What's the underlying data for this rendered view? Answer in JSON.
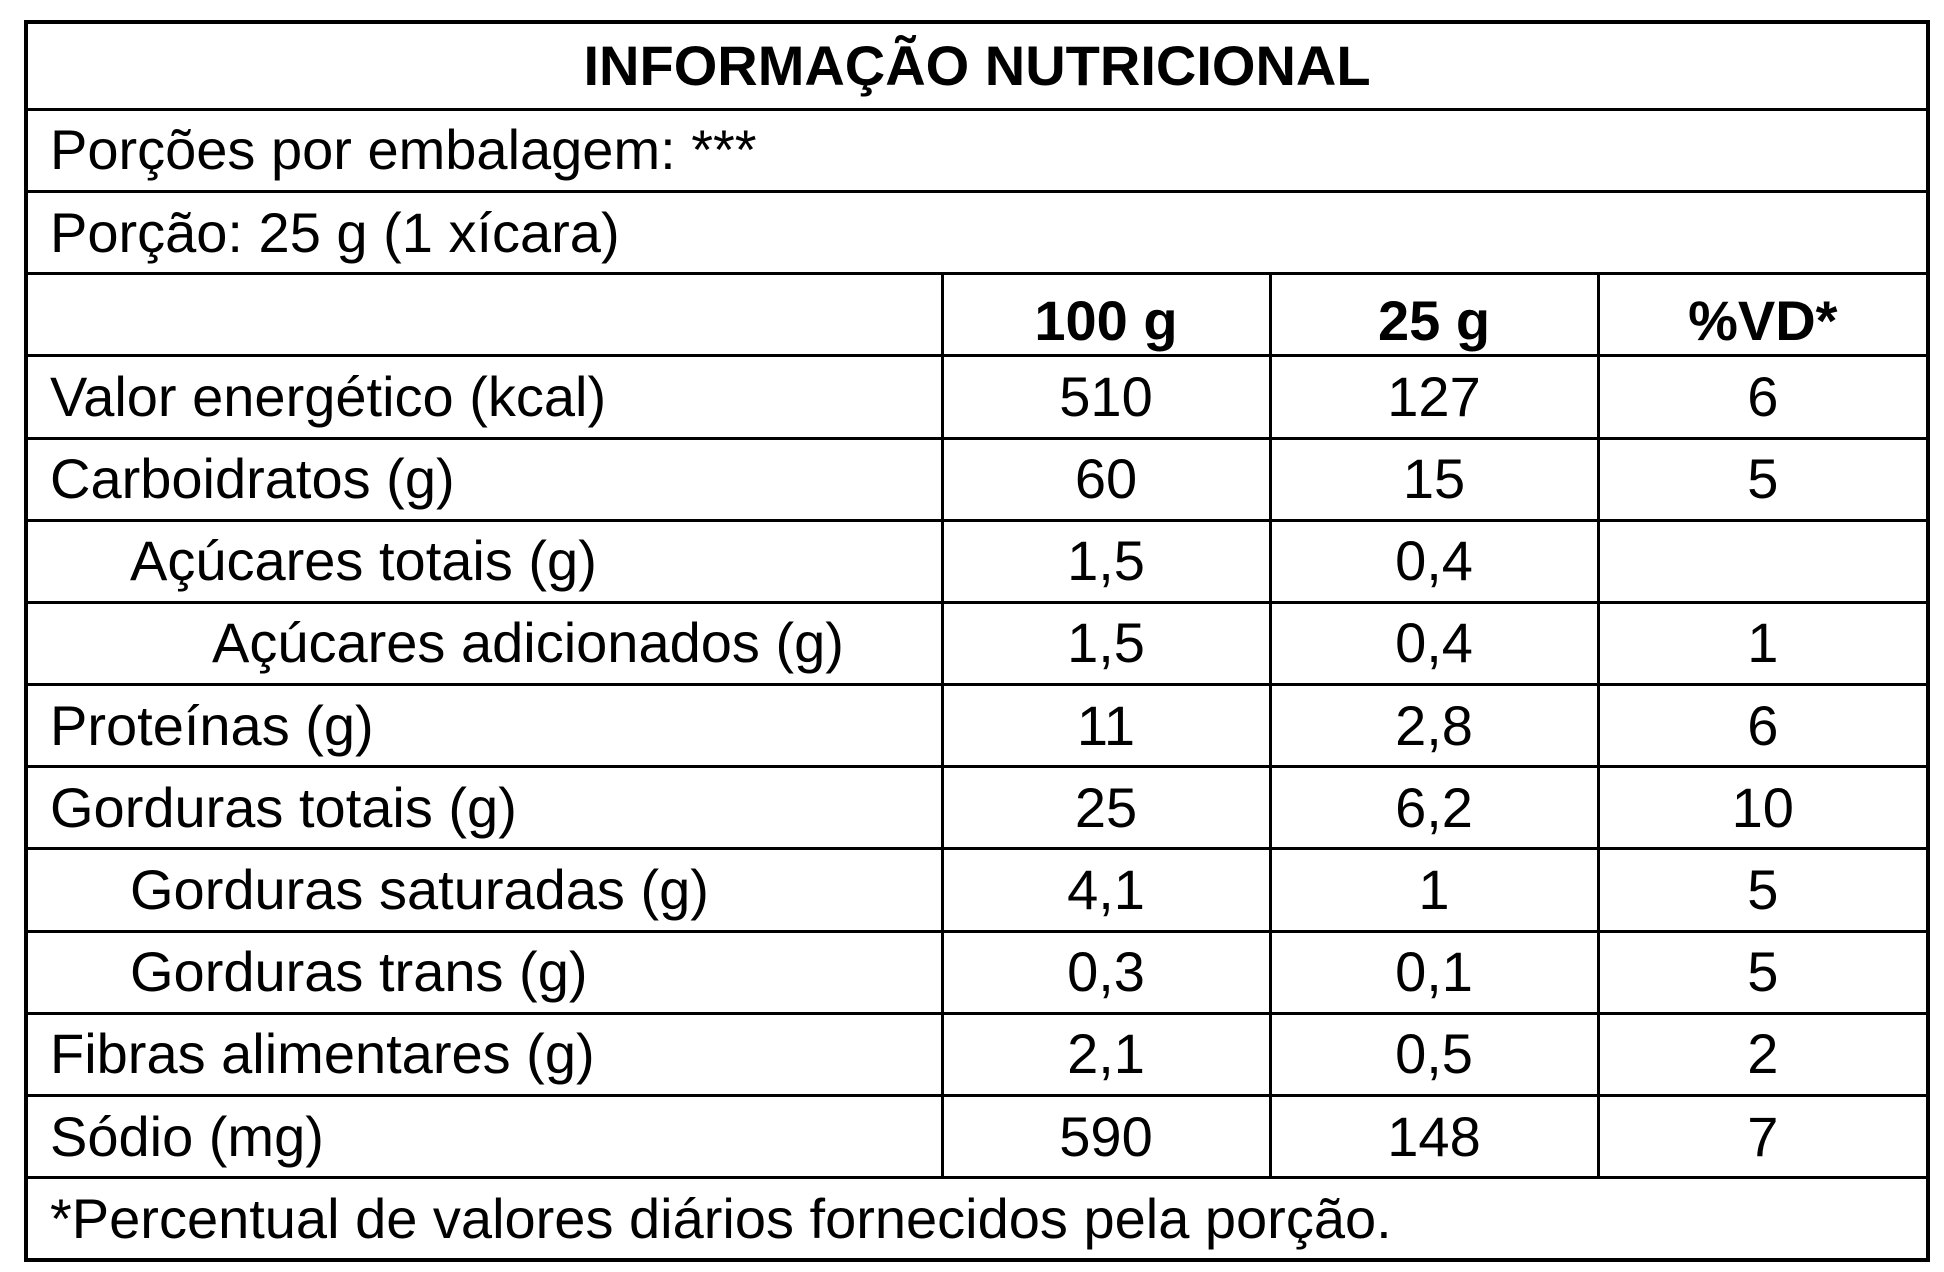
{
  "title": "INFORMAÇÃO NUTRICIONAL",
  "servings_per_package": "Porções por embalagem: ***",
  "serving_size": "Porção: 25 g (1 xícara)",
  "columns": [
    "",
    "100 g",
    "25 g",
    "%VD*"
  ],
  "rows": [
    {
      "name": "Valor energético (kcal)",
      "indent": 0,
      "per_100g": "510",
      "per_serving": "127",
      "dv": "6"
    },
    {
      "name": "Carboidratos (g)",
      "indent": 0,
      "per_100g": "60",
      "per_serving": "15",
      "dv": "5"
    },
    {
      "name": "Açúcares totais (g)",
      "indent": 1,
      "per_100g": "1,5",
      "per_serving": "0,4",
      "dv": ""
    },
    {
      "name": "Açúcares adicionados (g)",
      "indent": 2,
      "per_100g": "1,5",
      "per_serving": "0,4",
      "dv": "1"
    },
    {
      "name": "Proteínas (g)",
      "indent": 0,
      "per_100g": "11",
      "per_serving": "2,8",
      "dv": "6"
    },
    {
      "name": "Gorduras totais (g)",
      "indent": 0,
      "per_100g": "25",
      "per_serving": "6,2",
      "dv": "10"
    },
    {
      "name": "Gorduras saturadas (g)",
      "indent": 1,
      "per_100g": "4,1",
      "per_serving": "1",
      "dv": "5"
    },
    {
      "name": "Gorduras trans (g)",
      "indent": 1,
      "per_100g": "0,3",
      "per_serving": "0,1",
      "dv": "5"
    },
    {
      "name": "Fibras alimentares (g)",
      "indent": 0,
      "per_100g": "2,1",
      "per_serving": "0,5",
      "dv": "2"
    },
    {
      "name": "Sódio (mg)",
      "indent": 0,
      "per_100g": "590",
      "per_serving": "148",
      "dv": "7"
    }
  ],
  "footnote": "*Percentual de valores diários fornecidos pela porção."
}
